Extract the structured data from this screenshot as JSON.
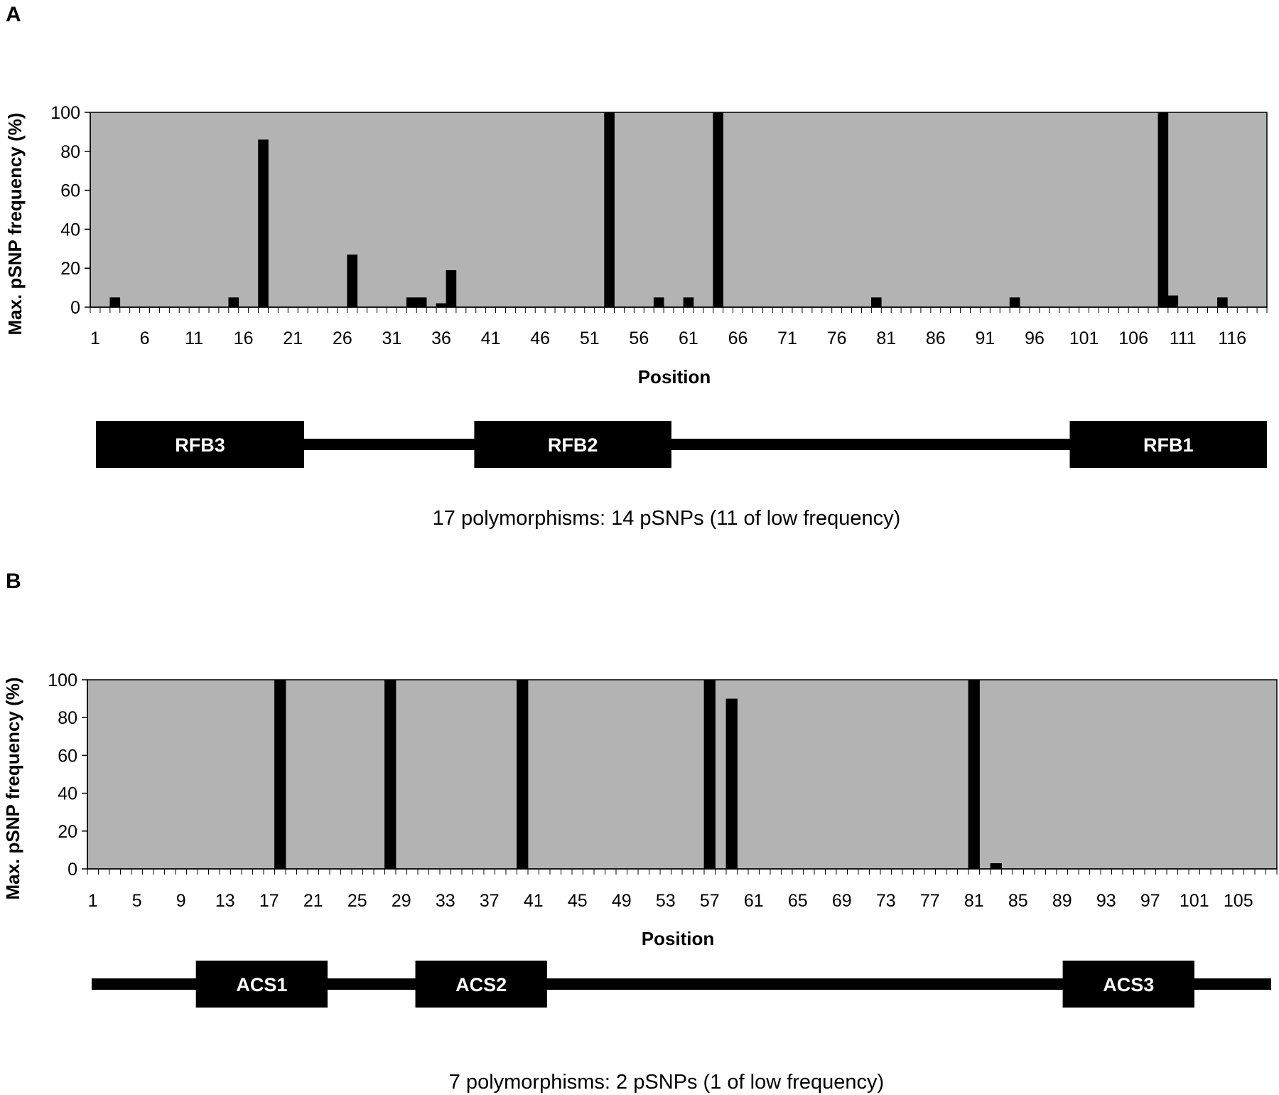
{
  "chart_data": [
    {
      "type": "bar",
      "panel_label": "A",
      "xlabel": "Position",
      "ylabel": "Max. pSNP frequency (%)",
      "ylim": [
        0,
        100
      ],
      "yticks": [
        0,
        20,
        40,
        60,
        80,
        100
      ],
      "x_range": [
        1,
        119
      ],
      "xtick_labels": [
        1,
        6,
        11,
        16,
        21,
        26,
        31,
        36,
        41,
        46,
        51,
        56,
        61,
        66,
        71,
        76,
        81,
        86,
        91,
        96,
        101,
        106,
        111,
        116
      ],
      "background": "#b3b3b3",
      "bar_color": "#000000",
      "grid": false,
      "points": [
        {
          "x": 3,
          "y": 5
        },
        {
          "x": 15,
          "y": 5
        },
        {
          "x": 18,
          "y": 86
        },
        {
          "x": 27,
          "y": 27
        },
        {
          "x": 33,
          "y": 5
        },
        {
          "x": 34,
          "y": 5
        },
        {
          "x": 36,
          "y": 2
        },
        {
          "x": 37,
          "y": 19
        },
        {
          "x": 53,
          "y": 100
        },
        {
          "x": 58,
          "y": 5
        },
        {
          "x": 61,
          "y": 5
        },
        {
          "x": 64,
          "y": 100
        },
        {
          "x": 80,
          "y": 5
        },
        {
          "x": 94,
          "y": 5
        },
        {
          "x": 109,
          "y": 100
        },
        {
          "x": 110,
          "y": 6
        },
        {
          "x": 115,
          "y": 5
        }
      ],
      "map": {
        "elements": [
          {
            "label": "RFB3",
            "start": 1,
            "end": 21.8
          },
          {
            "label": "RFB2",
            "start": 38.8,
            "end": 58.5
          },
          {
            "label": "RFB1",
            "start": 98.3,
            "end": 118
          }
        ],
        "line_start": 1,
        "line_end": 118
      },
      "caption": "17 polymorphisms: 14 pSNPs (11 of low frequency)"
    },
    {
      "type": "bar",
      "panel_label": "B",
      "xlabel": "Position",
      "ylabel": "Max. pSNP frequency (%)",
      "ylim": [
        0,
        100
      ],
      "yticks": [
        0,
        20,
        40,
        60,
        80,
        100
      ],
      "x_range": [
        1,
        108
      ],
      "xtick_labels": [
        1,
        5,
        9,
        13,
        17,
        21,
        25,
        29,
        33,
        37,
        41,
        45,
        49,
        53,
        57,
        61,
        65,
        69,
        73,
        77,
        81,
        85,
        89,
        93,
        97,
        101,
        105
      ],
      "background": "#b3b3b3",
      "bar_color": "#000000",
      "grid": false,
      "points": [
        {
          "x": 18,
          "y": 100
        },
        {
          "x": 28,
          "y": 100
        },
        {
          "x": 40,
          "y": 100
        },
        {
          "x": 57,
          "y": 100
        },
        {
          "x": 59,
          "y": 90
        },
        {
          "x": 81,
          "y": 100
        },
        {
          "x": 83,
          "y": 3
        }
      ],
      "map": {
        "elements": [
          {
            "label": "ACS1",
            "start": 10,
            "end": 22
          },
          {
            "label": "ACS2",
            "start": 30,
            "end": 42
          },
          {
            "label": "ACS3",
            "start": 89,
            "end": 101
          }
        ],
        "line_start": 0.5,
        "line_end": 108
      },
      "caption": "7 polymorphisms: 2 pSNPs (1 of low frequency)"
    }
  ]
}
